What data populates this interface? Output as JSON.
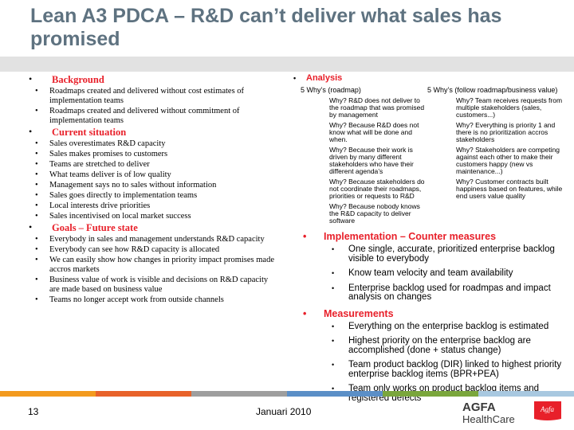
{
  "title": "Lean A3 PDCA – R&D can’t deliver what sales has promised",
  "left": [
    {
      "heading": "Background",
      "items": [
        "Roadmaps created and delivered without cost estimates of implementation teams",
        "Roadmaps created and delivered without commitment of implementation teams"
      ]
    },
    {
      "heading": "Current situation",
      "items": [
        "Sales overestimates R&D capacity",
        "Sales makes promises to customers",
        "Teams are stretched to deliver",
        "What teams deliver is of low quality",
        "Management says no to sales without information",
        "Sales goes directly to implementation teams",
        "Local interests drive priorities",
        "Sales incentivised on local market success"
      ]
    },
    {
      "heading": "Goals – Future state",
      "items": [
        "Everybody in sales and management understands R&D capacity",
        "Everybody can see how R&D capacity is allocated",
        "We can easily show how changes in priority impact promises made accros markets",
        "Business value of work is visible and decisions on R&D capacity are made based on business value",
        "Teams no longer accept work from outside channels"
      ]
    }
  ],
  "analysis": {
    "heading": "Analysis",
    "col1_head": "5 Why’s (roadmap)",
    "col1": [
      "Why? R&D does not deliver to the roadmap that was promised by management",
      "Why? Because R&D does not know what will be done and when.",
      "Why? Because their work is driven by many different stakeholders who have their different agenda’s",
      "Why? Because stakeholders do not coordinate their roadmaps, priorities or requests to R&D",
      "Why? Because nobody knows the R&D capacity to deliver software"
    ],
    "col2_head": "5 Why’s (follow roadmap/business value)",
    "col2": [
      "Why? Team receives requests from multiple stakeholders (sales, customers...)",
      "Why? Everything is priority 1 and there is no prioritization accros stakeholders",
      "Why? Stakeholders are competing against each other to make their customers happy (new vs maintenance...)",
      "Why? Customer contracts built happiness based on features, while end users value quality"
    ]
  },
  "implementation": {
    "heading": "Implementation – Counter measures",
    "items": [
      "One single, accurate, prioritized enterprise backlog visible to everybody",
      "Know team velocity and team availability",
      "Enterprise backlog used for roadmpas and impact analysis on changes"
    ]
  },
  "measurements": {
    "heading": "Measurements",
    "items": [
      "Everything on the enterprise backlog is estimated",
      "Highest priority on the enterprise backlog are accomplished (done + status change)",
      "Team product backlog (DIR) linked to highest priority enterprise backlog items (BPR+PEA)",
      "Team only works on product backlog items and registered defects"
    ]
  },
  "footer": {
    "page": "13",
    "date": "Januari 2010"
  },
  "logo": {
    "brand": "AGFA",
    "sub": "HealthCare",
    "emblem": "Agfa"
  },
  "colors": {
    "title": "#5e7280",
    "heading": "#e8202a",
    "stripe": [
      "#f39a1e",
      "#e8622a",
      "#9e9e9e",
      "#7aa63c",
      "#5b8fc7",
      "#a8c8e0"
    ]
  }
}
